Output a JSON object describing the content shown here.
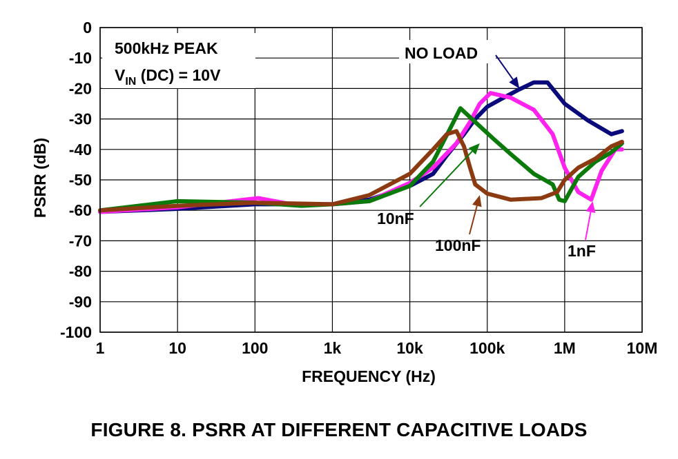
{
  "caption": "FIGURE 8.  PSRR AT DIFFERENT CAPACITIVE LOADS",
  "chart_data": {
    "type": "line",
    "title": "",
    "xlabel": "FREQUENCY (Hz)",
    "ylabel": "PSRR (dB)",
    "xscale": "log",
    "xlim": [
      1,
      10000000
    ],
    "ylim": [
      -100,
      0
    ],
    "grid": true,
    "xticks": [
      {
        "value": 1,
        "label": "1"
      },
      {
        "value": 10,
        "label": "10"
      },
      {
        "value": 100,
        "label": "100"
      },
      {
        "value": 1000,
        "label": "1k"
      },
      {
        "value": 10000,
        "label": "10k"
      },
      {
        "value": 100000,
        "label": "100k"
      },
      {
        "value": 1000000,
        "label": "1M"
      },
      {
        "value": 10000000,
        "label": "10M"
      }
    ],
    "yticks": [
      {
        "value": 0,
        "label": "0"
      },
      {
        "value": -10,
        "label": "-10"
      },
      {
        "value": -20,
        "label": "-20"
      },
      {
        "value": -30,
        "label": "-30"
      },
      {
        "value": -40,
        "label": "-40"
      },
      {
        "value": -50,
        "label": "-50"
      },
      {
        "value": -60,
        "label": "-60"
      },
      {
        "value": -70,
        "label": "-70"
      },
      {
        "value": -80,
        "label": "-80"
      },
      {
        "value": -90,
        "label": "-90"
      },
      {
        "value": -100,
        "label": "-100"
      }
    ],
    "conditions": {
      "line1": "500kHz PEAK",
      "line2_main": "V",
      "line2_sub": "IN",
      "line2_rest": " (DC) = 10V"
    },
    "series": [
      {
        "name": "NO LOAD",
        "color": "#0a0a7a",
        "x": [
          1,
          10,
          100,
          1000,
          3000,
          10000,
          20000,
          30000,
          50000,
          70000,
          100000,
          150000,
          250000,
          400000,
          600000,
          1000000,
          2000000,
          4000000,
          5500000
        ],
        "y": [
          -60.5,
          -59.5,
          -58,
          -58,
          -56.5,
          -52,
          -48,
          -42,
          -35,
          -30,
          -26,
          -23.5,
          -20.5,
          -18,
          -18,
          -25,
          -30.5,
          -35,
          -34
        ]
      },
      {
        "name": "1nF",
        "color": "#ff22ee",
        "x": [
          1,
          10,
          110,
          300,
          1000,
          3000,
          10000,
          20000,
          40000,
          60000,
          80000,
          110000,
          200000,
          400000,
          700000,
          1000000,
          1500000,
          2200000,
          3000000,
          4500000,
          5500000
        ],
        "y": [
          -60.5,
          -59,
          -56,
          -58,
          -58,
          -57,
          -51,
          -46,
          -38,
          -31,
          -25,
          -21.5,
          -23,
          -27,
          -35,
          -46,
          -54,
          -56.5,
          -47,
          -40,
          -40
        ]
      },
      {
        "name": "10nF",
        "color": "#0a7a0a",
        "x": [
          1,
          10,
          100,
          400,
          1000,
          3000,
          10000,
          20000,
          35000,
          45000,
          70000,
          120000,
          200000,
          400000,
          700000,
          850000,
          1000000,
          1500000,
          2500000,
          4000000,
          5500000
        ],
        "y": [
          -60,
          -57,
          -57.5,
          -58.5,
          -58,
          -57,
          -52,
          -44,
          -32,
          -26.5,
          -31,
          -36.5,
          -41.5,
          -48,
          -51.5,
          -56.5,
          -57,
          -49,
          -44,
          -41,
          -38
        ]
      },
      {
        "name": "100nF",
        "color": "#8b3a12",
        "x": [
          1,
          10,
          100,
          1000,
          3000,
          10000,
          20000,
          30000,
          40000,
          50000,
          60000,
          70000,
          100000,
          200000,
          500000,
          800000,
          1000000,
          1500000,
          2500000,
          4000000,
          5500000
        ],
        "y": [
          -60,
          -58.5,
          -57.5,
          -58,
          -55,
          -48,
          -40,
          -35,
          -34,
          -39,
          -46,
          -51.5,
          -54.5,
          -56.5,
          -56,
          -54,
          -50,
          -46,
          -43,
          -39,
          -37.5
        ]
      }
    ],
    "annotations": [
      {
        "text": "NO LOAD",
        "series": "NO LOAD",
        "arrow_to": {
          "x": 260000,
          "y": -20
        }
      },
      {
        "text": "10nF",
        "series": "10nF",
        "arrow_to": {
          "x": 80000,
          "y": -38
        }
      },
      {
        "text": "100nF",
        "series": "100nF",
        "arrow_to": {
          "x": 80000,
          "y": -55
        }
      },
      {
        "text": "1nF",
        "series": "1nF",
        "arrow_to": {
          "x": 2300000,
          "y": -57
        }
      }
    ]
  }
}
